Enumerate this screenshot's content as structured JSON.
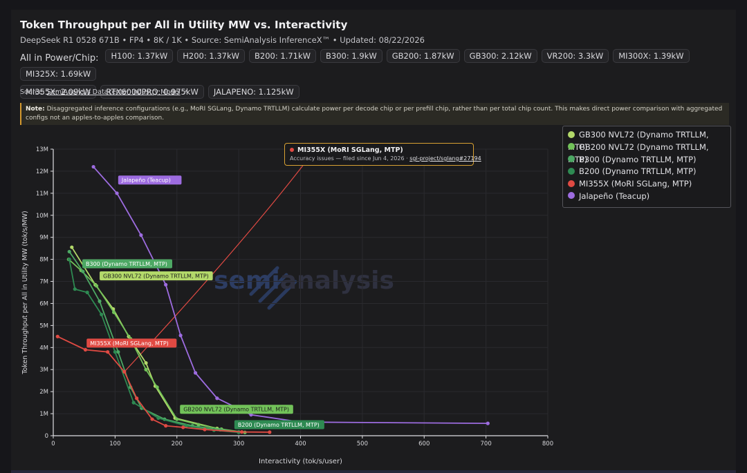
{
  "title": "Token Throughput per All in Utility MW vs. Interactivity",
  "subtitle": "DeepSeek R1 0528 671B • FP4 • 8K / 1K • Source: SemiAnalysis InferenceX™ • Updated: 08/22/2026",
  "power_label": "All in Power/Chip:",
  "power_chips": [
    "H100: 1.37kW",
    "H200: 1.37kW",
    "B200: 1.71kW",
    "B300: 1.9kW",
    "GB200: 1.87kW",
    "GB300: 2.12kW",
    "VR200: 3.3kW",
    "MI300X: 1.39kW",
    "MI325X: 1.69kW",
    "MI355X: 2.09kW",
    "RTX6000PRO: 0.975kW",
    "JALAPENO: 1.125kW"
  ],
  "source_prefix": "Source:",
  "source_link": "SemiAnalysis Datacenter Industry Model",
  "note_label": "Note:",
  "note_text": "Disaggregated inference configurations (e.g., MoRI SGLang, Dynamo TRTLLM) calculate power per decode chip or per prefill chip, rather than per total chip count. This makes direct power comparison with aggregated configs not an apples-to-apples comparison.",
  "watermark": {
    "part1": "semi",
    "part2": "analysis"
  },
  "tooltip": {
    "title": "MI355X (MoRI SGLang, MTP)",
    "body_prefix": "Accuracy issues — filed since Jun 4, 2026 · ",
    "link": "sgl-project/sglang#27194",
    "color": "#e04a43"
  },
  "chart_data": {
    "type": "line",
    "title": "Token Throughput per All in Utility MW vs. Interactivity",
    "xlabel": "Interactivity (tok/s/user)",
    "ylabel": "Token Throughput per All in Utility MW (tok/s/MW)",
    "xlim": [
      0,
      800
    ],
    "ylim": [
      0,
      13000000
    ],
    "x_ticks": [
      0,
      100,
      200,
      300,
      400,
      500,
      600,
      700,
      800
    ],
    "y_ticks": [
      0,
      1000000,
      2000000,
      3000000,
      4000000,
      5000000,
      6000000,
      7000000,
      8000000,
      9000000,
      10000000,
      11000000,
      12000000,
      13000000
    ],
    "y_tick_labels": [
      "0",
      "1M",
      "2M",
      "3M",
      "4M",
      "5M",
      "6M",
      "7M",
      "8M",
      "9M",
      "10M",
      "11M",
      "12M",
      "13M"
    ],
    "grid": true,
    "legend_position": "top-right",
    "series": [
      {
        "name": "GB300 NVL72 (Dynamo TRTLLM, MTP)",
        "color": "#b3d96a",
        "x": [
          30,
          68,
          97,
          122,
          150,
          165,
          197,
          265
        ],
        "y": [
          8550000,
          6850000,
          5750000,
          4500000,
          3300000,
          2250000,
          800000,
          330000
        ],
        "label": "GB300 NVL72 (Dynamo TRTLLM, MTP)"
      },
      {
        "name": "GB200 NVL72 (Dynamo TRTLLM, MTP)",
        "color": "#72c259",
        "x": [
          25,
          45,
          70,
          98,
          125,
          150,
          168,
          200,
          235,
          272,
          310
        ],
        "y": [
          8000000,
          7500000,
          6800000,
          5600000,
          4400000,
          3000000,
          2200000,
          750000,
          500000,
          300000,
          150000
        ],
        "label": "GB200 NVL72 (Dynamo TRTLLM, MTP)"
      },
      {
        "name": "B300 (Dynamo TRTLLM, MTP)",
        "color": "#4da864",
        "x": [
          26,
          48,
          75,
          105,
          125,
          143,
          180,
          225,
          270,
          300
        ],
        "y": [
          8350000,
          7450000,
          6100000,
          3800000,
          2200000,
          1250000,
          750000,
          450000,
          270000,
          170000
        ],
        "label": "B300 (Dynamo TRTLLM, MTP)"
      },
      {
        "name": "B200 (Dynamo TRTLLM, MTP)",
        "color": "#2e8a52",
        "x": [
          26,
          35,
          55,
          78,
          100,
          130,
          170,
          215,
          260,
          300
        ],
        "y": [
          8000000,
          6650000,
          6500000,
          5500000,
          3800000,
          1500000,
          800000,
          450000,
          250000,
          150000
        ],
        "label": "B200 (Dynamo TRTLLM, MTP)"
      },
      {
        "name": "MI355X (MoRI SGLang, MTP)",
        "color": "#e04a43",
        "x": [
          7,
          52,
          88,
          115,
          135,
          160,
          182,
          210,
          245,
          305,
          350
        ],
        "y": [
          4500000,
          3900000,
          3800000,
          2900000,
          1700000,
          750000,
          450000,
          380000,
          280000,
          170000,
          160000
        ],
        "label": "MI355X (MoRI SGLang, MTP)"
      },
      {
        "name": "Jalapeño (Teacup)",
        "color": "#9d6ce0",
        "x": [
          65,
          103,
          142,
          182,
          206,
          230,
          265,
          320,
          400,
          703
        ],
        "y": [
          12200000,
          11000000,
          9100000,
          6850000,
          4550000,
          2850000,
          1700000,
          950000,
          620000,
          560000
        ],
        "label": "Jalapeño (Teacup)"
      }
    ]
  }
}
